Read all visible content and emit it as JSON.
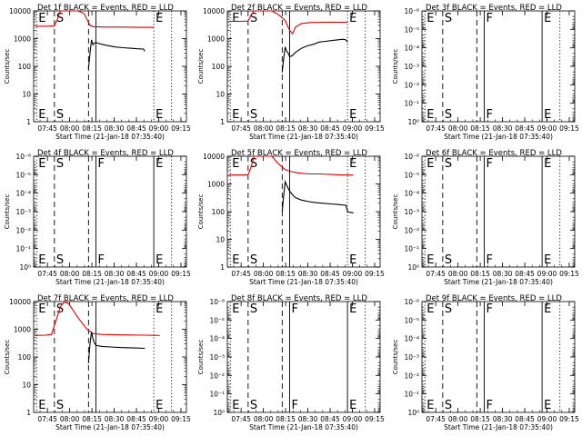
{
  "figure": {
    "x_label": "Start Time (21-Jan-18 07:35:40)",
    "y_label": "Counts/sec",
    "x_ticks": [
      "07:45",
      "08:00",
      "08:15",
      "08:30",
      "08:45",
      "09:00",
      "09:15"
    ],
    "x_tick_values": [
      9.3,
      24.3,
      39.3,
      54.3,
      69.3,
      84.3,
      99.3
    ],
    "x_unit": "minutes after start time"
  },
  "colors": {
    "events": "#000000",
    "lld": "#dd0000",
    "axes": "#000000"
  },
  "chart_data": [
    {
      "type": "line",
      "title": "Det 1f BLACK = Events, RED = LLD",
      "scale": "log",
      "ylim": [
        1,
        10000
      ],
      "y_ticks": [
        "1",
        "10",
        "100",
        "1000",
        "10000"
      ],
      "event_lines": [
        {
          "x": 2,
          "label": "E",
          "style": "dotted"
        },
        {
          "x": 14,
          "label": "S",
          "style": "dashed"
        },
        {
          "x": 37,
          "label": "",
          "style": "dashed"
        },
        {
          "x": 42,
          "label": "",
          "style": "solid"
        },
        {
          "x": 81,
          "label": "E",
          "style": "dotted"
        },
        {
          "x": 93,
          "label": "",
          "style": "dotted"
        }
      ],
      "series": [
        {
          "role": "lld",
          "points": [
            [
              1,
              2800
            ],
            [
              8,
              2800
            ],
            [
              14,
              2850
            ],
            [
              16,
              5000
            ],
            [
              18,
              10000
            ],
            [
              30,
              10000
            ],
            [
              34,
              8000
            ],
            [
              36,
              5000
            ],
            [
              38,
              3000
            ],
            [
              40,
              2700
            ],
            [
              48,
              2600
            ],
            [
              60,
              2600
            ],
            [
              70,
              2550
            ],
            [
              81,
              2550
            ]
          ]
        },
        {
          "role": "events",
          "points": [
            [
              37,
              80
            ],
            [
              38,
              300
            ],
            [
              39,
              900
            ],
            [
              40,
              600
            ],
            [
              41,
              700
            ],
            [
              42,
              720
            ],
            [
              46,
              620
            ],
            [
              50,
              560
            ],
            [
              55,
              500
            ],
            [
              60,
              470
            ],
            [
              65,
              450
            ],
            [
              70,
              430
            ],
            [
              74,
              420
            ],
            [
              75,
              350
            ]
          ]
        }
      ]
    },
    {
      "type": "line",
      "title": "Det 2f BLACK = Events, RED = LLD",
      "scale": "log",
      "ylim": [
        1,
        10000
      ],
      "y_ticks": [
        "1",
        "10",
        "100",
        "1000",
        "10000"
      ],
      "event_lines": [
        {
          "x": 2,
          "label": "E",
          "style": "dotted"
        },
        {
          "x": 14,
          "label": "S",
          "style": "dashed"
        },
        {
          "x": 37,
          "label": "",
          "style": "dashed"
        },
        {
          "x": 42,
          "label": "",
          "style": "solid"
        },
        {
          "x": 81,
          "label": "E",
          "style": "dotted"
        },
        {
          "x": 93,
          "label": "",
          "style": "dotted"
        }
      ],
      "series": [
        {
          "role": "lld",
          "points": [
            [
              1,
              4200
            ],
            [
              8,
              4200
            ],
            [
              14,
              4300
            ],
            [
              16,
              7000
            ],
            [
              18,
              10000
            ],
            [
              30,
              10000
            ],
            [
              35,
              7000
            ],
            [
              39,
              4500
            ],
            [
              42,
              2000
            ],
            [
              44,
              1500
            ],
            [
              46,
              2600
            ],
            [
              50,
              3500
            ],
            [
              56,
              3800
            ],
            [
              66,
              3900
            ],
            [
              76,
              3900
            ],
            [
              81,
              3900
            ]
          ]
        },
        {
          "role": "events",
          "points": [
            [
              37,
              60
            ],
            [
              38,
              200
            ],
            [
              39,
              500
            ],
            [
              40,
              350
            ],
            [
              41,
              300
            ],
            [
              42,
              220
            ],
            [
              44,
              250
            ],
            [
              46,
              320
            ],
            [
              50,
              450
            ],
            [
              54,
              550
            ],
            [
              58,
              620
            ],
            [
              62,
              750
            ],
            [
              66,
              800
            ],
            [
              70,
              850
            ],
            [
              74,
              900
            ],
            [
              78,
              950
            ],
            [
              80,
              900
            ],
            [
              81,
              750
            ]
          ]
        }
      ]
    },
    {
      "type": "line",
      "title": "Det 3f BLACK = Events, RED = LLD",
      "scale": "log",
      "ylim": [
        1,
        1e-06
      ],
      "y_ticks": [
        "10⁰",
        "10⁻¹",
        "10⁻²",
        "10⁻³",
        "10⁻⁴",
        "10⁻⁵",
        "10⁻⁶"
      ],
      "event_lines": [
        {
          "x": 2,
          "label": "E",
          "style": "dotted"
        },
        {
          "x": 14,
          "label": "S",
          "style": "dashed"
        },
        {
          "x": 37,
          "label": "",
          "style": "dashed"
        },
        {
          "x": 42,
          "label": "F",
          "style": "solid"
        },
        {
          "x": 81,
          "label": "E",
          "style": "solid"
        },
        {
          "x": 93,
          "label": "",
          "style": "dotted"
        }
      ],
      "series": []
    },
    {
      "type": "line",
      "title": "Det 4f BLACK = Events, RED = LLD",
      "scale": "log",
      "ylim": [
        1,
        1e-06
      ],
      "y_ticks": [
        "10⁰",
        "10⁻¹",
        "10⁻²",
        "10⁻³",
        "10⁻⁴",
        "10⁻⁵",
        "10⁻⁶"
      ],
      "event_lines": [
        {
          "x": 2,
          "label": "E",
          "style": "dotted"
        },
        {
          "x": 14,
          "label": "S",
          "style": "dashed"
        },
        {
          "x": 37,
          "label": "",
          "style": "dashed"
        },
        {
          "x": 42,
          "label": "F",
          "style": "solid"
        },
        {
          "x": 81,
          "label": "E",
          "style": "solid"
        },
        {
          "x": 93,
          "label": "",
          "style": "dotted"
        }
      ],
      "series": []
    },
    {
      "type": "line",
      "title": "Det 5f BLACK = Events, RED = LLD",
      "scale": "log",
      "ylim": [
        1,
        10000
      ],
      "y_ticks": [
        "1",
        "10",
        "100",
        "1000",
        "10000"
      ],
      "event_lines": [
        {
          "x": 2,
          "label": "E",
          "style": "dotted"
        },
        {
          "x": 14,
          "label": "S",
          "style": "dashed"
        },
        {
          "x": 37,
          "label": "",
          "style": "dashed"
        },
        {
          "x": 42,
          "label": "",
          "style": "solid"
        },
        {
          "x": 81,
          "label": "E",
          "style": "dotted"
        },
        {
          "x": 93,
          "label": "",
          "style": "dotted"
        }
      ],
      "series": [
        {
          "role": "lld",
          "points": [
            [
              1,
              2100
            ],
            [
              8,
              2100
            ],
            [
              14,
              2150
            ],
            [
              16,
              4000
            ],
            [
              18,
              10000
            ],
            [
              30,
              10000
            ],
            [
              35,
              5000
            ],
            [
              39,
              3300
            ],
            [
              43,
              2800
            ],
            [
              48,
              2500
            ],
            [
              55,
              2300
            ],
            [
              62,
              2300
            ],
            [
              70,
              2200
            ],
            [
              78,
              2100
            ],
            [
              85,
              2100
            ]
          ]
        },
        {
          "role": "events",
          "points": [
            [
              37,
              100
            ],
            [
              38,
              400
            ],
            [
              39,
              1200
            ],
            [
              40,
              900
            ],
            [
              41,
              700
            ],
            [
              42,
              550
            ],
            [
              44,
              400
            ],
            [
              46,
              320
            ],
            [
              50,
              260
            ],
            [
              55,
              230
            ],
            [
              60,
              210
            ],
            [
              65,
              200
            ],
            [
              70,
              190
            ],
            [
              75,
              180
            ],
            [
              80,
              170
            ],
            [
              81,
              100
            ],
            [
              85,
              90
            ]
          ]
        }
      ]
    },
    {
      "type": "line",
      "title": "Det 6f BLACK = Events, RED = LLD",
      "scale": "log",
      "ylim": [
        1,
        1e-06
      ],
      "y_ticks": [
        "10⁰",
        "10⁻¹",
        "10⁻²",
        "10⁻³",
        "10⁻⁴",
        "10⁻⁵",
        "10⁻⁶"
      ],
      "event_lines": [
        {
          "x": 2,
          "label": "E",
          "style": "dotted"
        },
        {
          "x": 14,
          "label": "S",
          "style": "dashed"
        },
        {
          "x": 37,
          "label": "",
          "style": "dashed"
        },
        {
          "x": 42,
          "label": "F",
          "style": "solid"
        },
        {
          "x": 81,
          "label": "E",
          "style": "solid"
        },
        {
          "x": 93,
          "label": "",
          "style": "dotted"
        }
      ],
      "series": []
    },
    {
      "type": "line",
      "title": "Det 7f BLACK = Events, RED = LLD",
      "scale": "log",
      "ylim": [
        1,
        10000
      ],
      "y_ticks": [
        "1",
        "10",
        "100",
        "1000",
        "10000"
      ],
      "event_lines": [
        {
          "x": 2,
          "label": "E",
          "style": "dotted"
        },
        {
          "x": 14,
          "label": "S",
          "style": "dashed"
        },
        {
          "x": 37,
          "label": "",
          "style": "dashed"
        },
        {
          "x": 42,
          "label": "",
          "style": "solid"
        },
        {
          "x": 81,
          "label": "E",
          "style": "dotted"
        },
        {
          "x": 93,
          "label": "",
          "style": "dotted"
        }
      ],
      "series": [
        {
          "role": "lld",
          "points": [
            [
              1,
              600
            ],
            [
              8,
              610
            ],
            [
              12,
              650
            ],
            [
              15,
              2000
            ],
            [
              18,
              6500
            ],
            [
              21,
              10000
            ],
            [
              24,
              8000
            ],
            [
              27,
              4500
            ],
            [
              30,
              2600
            ],
            [
              33,
              1600
            ],
            [
              36,
              1000
            ],
            [
              40,
              700
            ],
            [
              46,
              650
            ],
            [
              55,
              630
            ],
            [
              65,
              620
            ],
            [
              75,
              610
            ],
            [
              85,
              600
            ]
          ]
        },
        {
          "role": "events",
          "points": [
            [
              37,
              60
            ],
            [
              38,
              300
            ],
            [
              39,
              800
            ],
            [
              40,
              450
            ],
            [
              41,
              320
            ],
            [
              42,
              260
            ],
            [
              46,
              240
            ],
            [
              52,
              230
            ],
            [
              58,
              220
            ],
            [
              65,
              215
            ],
            [
              70,
              210
            ],
            [
              75,
              205
            ]
          ]
        }
      ]
    },
    {
      "type": "line",
      "title": "Det 8f BLACK = Events, RED = LLD",
      "scale": "log",
      "ylim": [
        1,
        1e-06
      ],
      "y_ticks": [
        "10⁰",
        "10⁻¹",
        "10⁻²",
        "10⁻³",
        "10⁻⁴",
        "10⁻⁵",
        "10⁻⁶"
      ],
      "event_lines": [
        {
          "x": 2,
          "label": "E",
          "style": "dotted"
        },
        {
          "x": 14,
          "label": "S",
          "style": "dashed"
        },
        {
          "x": 37,
          "label": "",
          "style": "dashed"
        },
        {
          "x": 42,
          "label": "F",
          "style": "solid"
        },
        {
          "x": 81,
          "label": "E",
          "style": "solid"
        },
        {
          "x": 93,
          "label": "",
          "style": "dotted"
        }
      ],
      "series": []
    },
    {
      "type": "line",
      "title": "Det 9f BLACK = Events, RED = LLD",
      "scale": "log",
      "ylim": [
        1,
        1e-06
      ],
      "y_ticks": [
        "10⁰",
        "10⁻¹",
        "10⁻²",
        "10⁻³",
        "10⁻⁴",
        "10⁻⁵",
        "10⁻⁶"
      ],
      "event_lines": [
        {
          "x": 2,
          "label": "E",
          "style": "dotted"
        },
        {
          "x": 14,
          "label": "S",
          "style": "dashed"
        },
        {
          "x": 37,
          "label": "",
          "style": "dashed"
        },
        {
          "x": 42,
          "label": "F",
          "style": "solid"
        },
        {
          "x": 81,
          "label": "E",
          "style": "solid"
        },
        {
          "x": 93,
          "label": "",
          "style": "dotted"
        }
      ],
      "series": []
    }
  ]
}
